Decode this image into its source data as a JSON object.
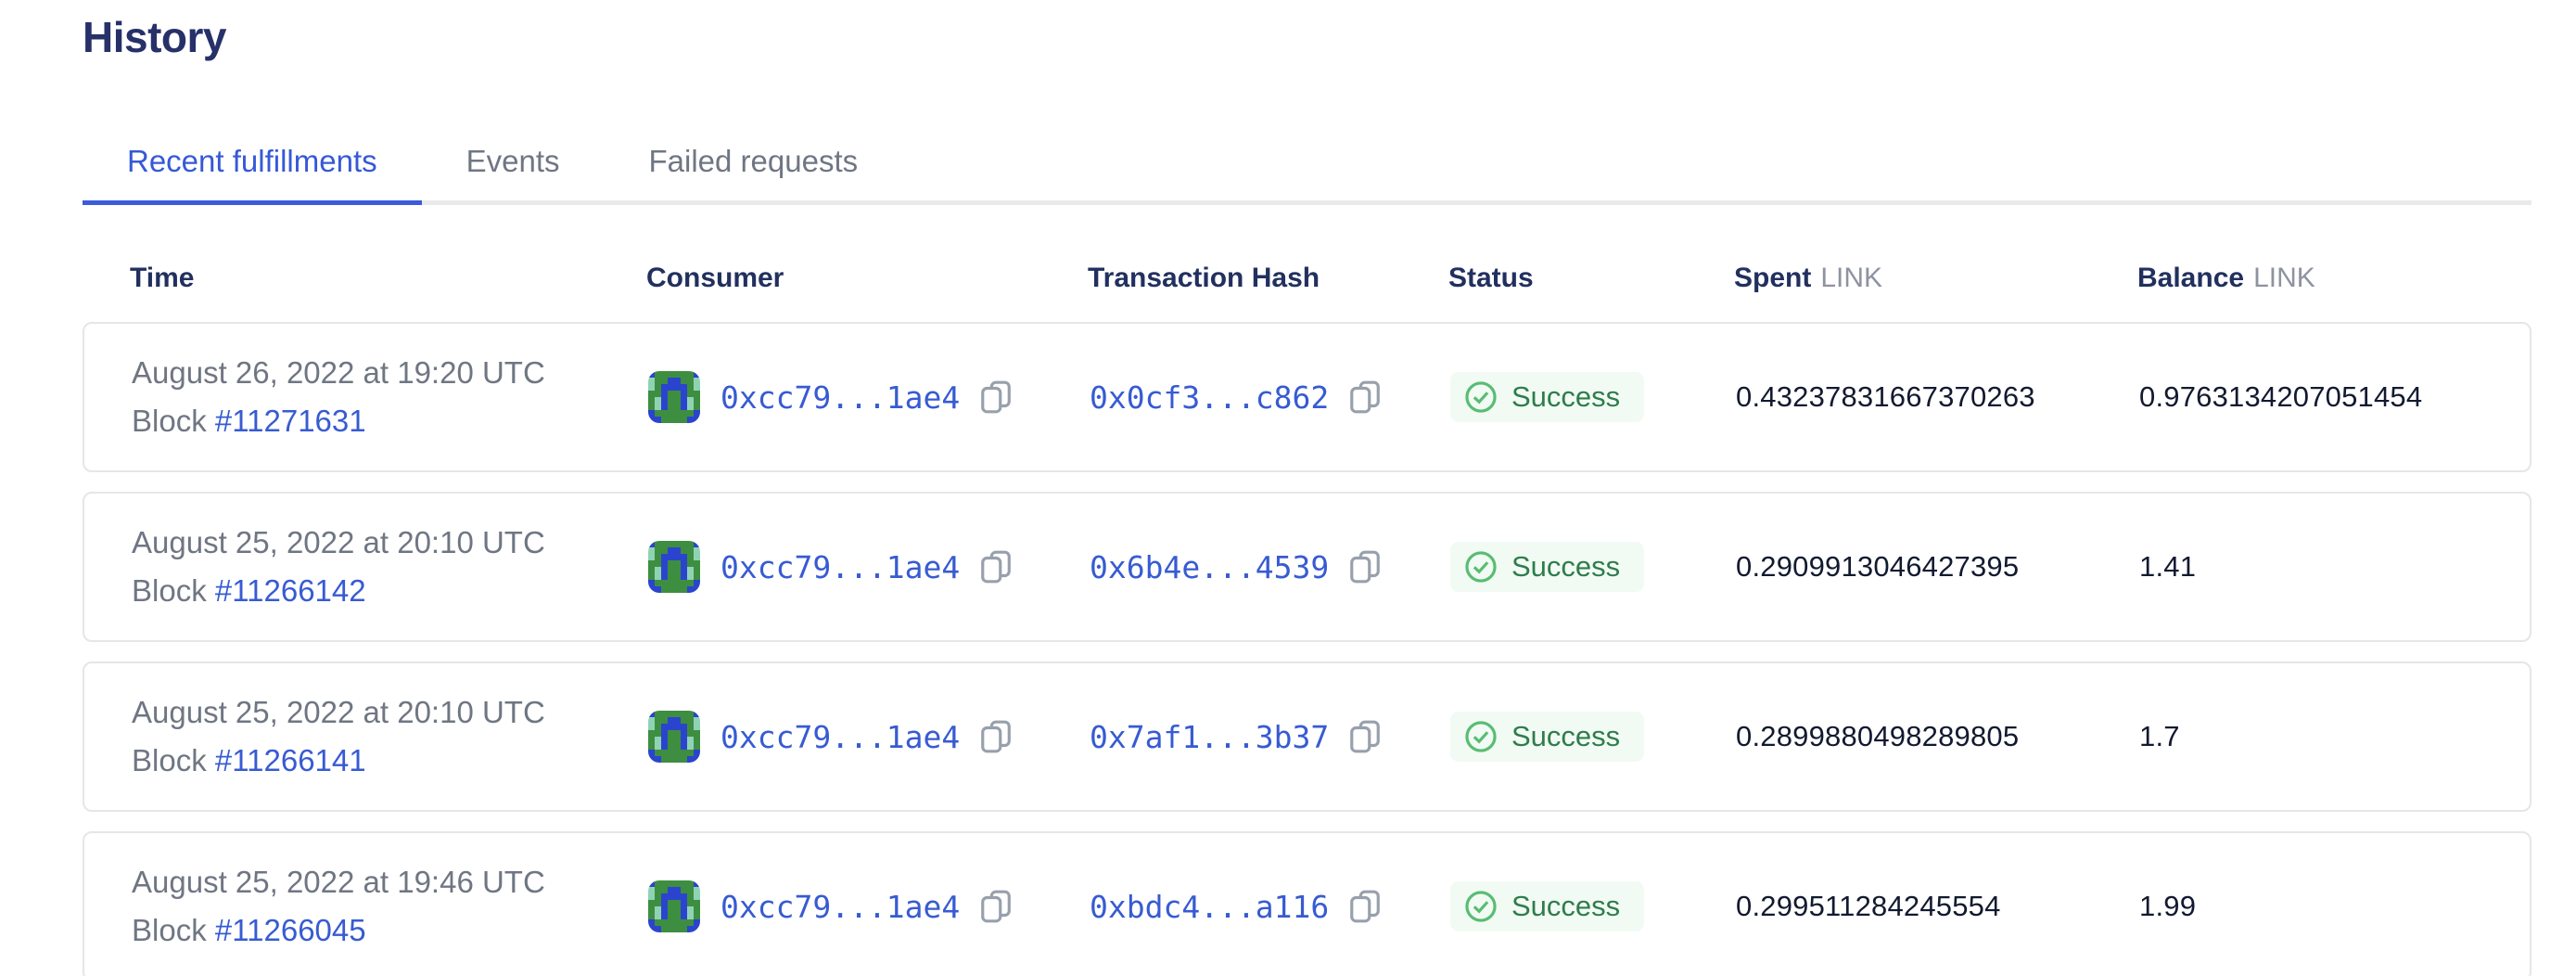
{
  "page": {
    "title": "History"
  },
  "tabs": [
    {
      "label": "Recent fulfillments",
      "active": true
    },
    {
      "label": "Events",
      "active": false
    },
    {
      "label": "Failed requests",
      "active": false
    }
  ],
  "table": {
    "headers": {
      "time": "Time",
      "consumer": "Consumer",
      "tx": "Transaction Hash",
      "status": "Status",
      "spent": "Spent",
      "spent_unit": "LINK",
      "balance": "Balance",
      "balance_unit": "LINK"
    },
    "rows": [
      {
        "time": "August 26, 2022 at 19:20 UTC",
        "block_label": "Block ",
        "block": "#11271631",
        "consumer": "0xcc79...1ae4",
        "tx": "0x0cf3...c862",
        "status": "Success",
        "spent": "0.43237831667370263",
        "balance": "0.9763134207051454"
      },
      {
        "time": "August 25, 2022 at 20:10 UTC",
        "block_label": "Block ",
        "block": "#11266142",
        "consumer": "0xcc79...1ae4",
        "tx": "0x6b4e...4539",
        "status": "Success",
        "spent": "0.2909913046427395",
        "balance": "1.41"
      },
      {
        "time": "August 25, 2022 at 20:10 UTC",
        "block_label": "Block ",
        "block": "#11266141",
        "consumer": "0xcc79...1ae4",
        "tx": "0x7af1...3b37",
        "status": "Success",
        "spent": "0.2899880498289805",
        "balance": "1.7"
      },
      {
        "time": "August 25, 2022 at 19:46 UTC",
        "block_label": "Block ",
        "block": "#11266045",
        "consumer": "0xcc79...1ae4",
        "tx": "0xbdc4...a116",
        "status": "Success",
        "spent": "0.299511284245554",
        "balance": "1.99"
      }
    ]
  },
  "icons": {
    "copy": "copy-icon",
    "success_check": "check-circle-icon",
    "consumer_avatar": "blockies-identicon"
  },
  "colors": {
    "accent_blue": "#375bd2",
    "active_tab_underline": "#3b5bdb",
    "heading_navy": "#263069",
    "gray_text": "#6f7683",
    "success_green_text": "#2e7d4b",
    "success_green_icon": "#57bd72",
    "success_bg": "#f2faf4",
    "card_border": "#e5e6e9",
    "avatar_green": "#3e8e41",
    "avatar_blue": "#2b44ce",
    "avatar_teal": "#8fd3b4"
  }
}
